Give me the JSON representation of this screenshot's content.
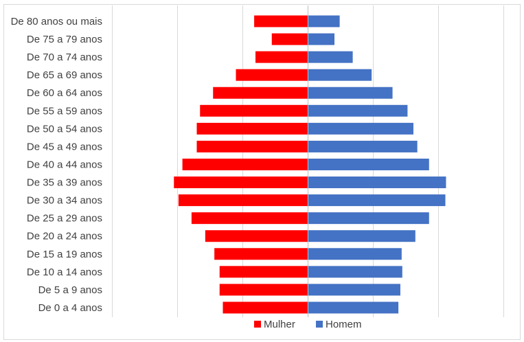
{
  "chart_data": {
    "type": "bar",
    "orientation": "horizontal-diverging",
    "categories": [
      "De 80 anos ou mais",
      "De 75 a 79 anos",
      "De 70 a 74 anos",
      "De 65 a 69 anos",
      "De 60 a 64 anos",
      "De 55 a 59 anos",
      "De 50 a 54 anos",
      "De 45 a 49 anos",
      "De 40 a 44 anos",
      "De 35 a 39 anos",
      "De 30 a 34 anos",
      "De 25 a 29 anos",
      "De 20 a 24 anos",
      "De 15 a 19 anos",
      "De 10 a 14 anos",
      "De 5 a 9 anos",
      "De 0 a 4 anos"
    ],
    "series": [
      {
        "name": "Mulher",
        "side": "left",
        "color": "#ff0000",
        "values": [
          0.82,
          0.55,
          0.8,
          1.1,
          1.45,
          1.65,
          1.7,
          1.7,
          1.92,
          2.05,
          1.98,
          1.78,
          1.57,
          1.43,
          1.35,
          1.35,
          1.3
        ]
      },
      {
        "name": "Homem",
        "side": "right",
        "color": "#4472c4",
        "values": [
          0.48,
          0.4,
          0.68,
          0.97,
          1.29,
          1.52,
          1.61,
          1.67,
          1.85,
          2.11,
          2.1,
          1.85,
          1.64,
          1.43,
          1.44,
          1.41,
          1.38
        ]
      }
    ],
    "xlim": [
      -3,
      3
    ],
    "grid": true,
    "legend_position": "bottom"
  }
}
